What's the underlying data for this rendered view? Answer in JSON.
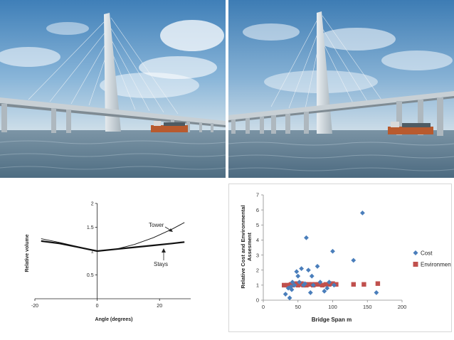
{
  "chart_data": [
    {
      "type": "line",
      "title": "",
      "xlabel": "Angle (degrees)",
      "ylabel": "Relative volume",
      "xlim": [
        -20,
        30
      ],
      "ylim": [
        0,
        2
      ],
      "x_ticks": [
        -20,
        0,
        20
      ],
      "y_ticks": [
        0.5,
        1,
        1.5,
        2
      ],
      "x_tick_labels": [
        "-20",
        "0",
        "20"
      ],
      "y_tick_labels": [
        "0.5",
        "1",
        "1.5",
        "2"
      ],
      "series": [
        {
          "name": "Tower",
          "x": [
            -18,
            -12,
            -6,
            0,
            6,
            12,
            18,
            24,
            28
          ],
          "y": [
            1.26,
            1.18,
            1.09,
            1.0,
            1.04,
            1.14,
            1.28,
            1.46,
            1.6
          ]
        },
        {
          "name": "Stays",
          "x": [
            -18,
            -12,
            -6,
            0,
            6,
            12,
            18,
            24,
            28
          ],
          "y": [
            1.21,
            1.16,
            1.08,
            1.0,
            1.04,
            1.08,
            1.12,
            1.16,
            1.19
          ]
        }
      ],
      "annotations": [
        "Tower",
        "Stays"
      ],
      "grid": false
    },
    {
      "type": "scatter",
      "title": "",
      "xlabel": "Bridge Span m",
      "ylabel": "Relative Cost and Environmental Assesment",
      "xlim": [
        0,
        200
      ],
      "ylim": [
        0,
        7
      ],
      "x_ticks": [
        0,
        50,
        100,
        150,
        200
      ],
      "y_ticks": [
        0,
        1,
        2,
        3,
        4,
        5,
        6,
        7
      ],
      "x_tick_labels": [
        "0",
        "50",
        "100",
        "150",
        "200"
      ],
      "y_tick_labels": [
        "0",
        "1",
        "2",
        "3",
        "4",
        "5",
        "6",
        "7"
      ],
      "legend_position": "right",
      "grid": false,
      "series": [
        {
          "name": "Cost",
          "color": "#4a7ebb",
          "marker": "diamond",
          "x": [
            32,
            36,
            38,
            40,
            41,
            42,
            45,
            48,
            50,
            52,
            55,
            58,
            60,
            62,
            65,
            68,
            70,
            72,
            78,
            82,
            88,
            92,
            95,
            100,
            102,
            130,
            143,
            163
          ],
          "y": [
            0.4,
            0.8,
            0.15,
            0.9,
            0.7,
            1.2,
            1.0,
            1.9,
            1.6,
            1.2,
            2.1,
            1.0,
            1.1,
            4.15,
            2.0,
            0.5,
            1.6,
            1.0,
            2.25,
            1.2,
            0.6,
            0.8,
            1.2,
            3.25,
            1.0,
            2.65,
            5.8,
            0.5
          ]
        },
        {
          "name": "Environment",
          "color": "#c0504d",
          "marker": "square",
          "x": [
            30,
            35,
            38,
            40,
            42,
            45,
            48,
            50,
            52,
            55,
            58,
            60,
            62,
            65,
            70,
            72,
            75,
            80,
            85,
            90,
            95,
            100,
            105,
            130,
            145,
            165
          ],
          "y": [
            1.0,
            1.0,
            1.0,
            1.05,
            1.0,
            1.05,
            1.1,
            1.0,
            1.05,
            1.1,
            1.0,
            1.05,
            1.0,
            1.05,
            1.05,
            1.0,
            1.05,
            1.05,
            1.0,
            1.05,
            1.05,
            1.1,
            1.05,
            1.05,
            1.05,
            1.1
          ]
        }
      ]
    }
  ]
}
